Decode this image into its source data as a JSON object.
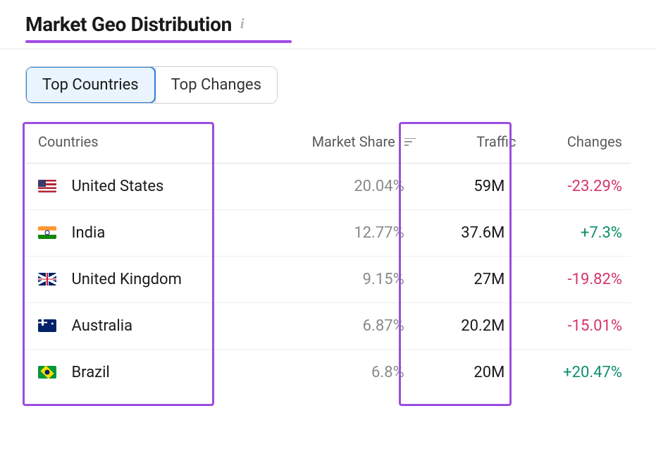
{
  "header": {
    "title": "Market Geo Distribution",
    "underline_color": "#a14ee8"
  },
  "tabs": [
    {
      "label": "Top Countries",
      "active": true
    },
    {
      "label": "Top Changes",
      "active": false
    }
  ],
  "table": {
    "columns": {
      "countries": "Countries",
      "market_share": "Market Share",
      "traffic": "Traffic",
      "changes": "Changes"
    },
    "sorted_by": "market_share",
    "rows": [
      {
        "flag": "us",
        "country": "United States",
        "market_share": "20.04%",
        "traffic": "59M",
        "changes": "-23.29%",
        "changes_sign": "neg"
      },
      {
        "flag": "in",
        "country": "India",
        "market_share": "12.77%",
        "traffic": "37.6M",
        "changes": "+7.3%",
        "changes_sign": "pos"
      },
      {
        "flag": "gb",
        "country": "United Kingdom",
        "market_share": "9.15%",
        "traffic": "27M",
        "changes": "-19.82%",
        "changes_sign": "neg"
      },
      {
        "flag": "au",
        "country": "Australia",
        "market_share": "6.87%",
        "traffic": "20.2M",
        "changes": "-15.01%",
        "changes_sign": "neg"
      },
      {
        "flag": "br",
        "country": "Brazil",
        "market_share": "6.8%",
        "traffic": "20M",
        "changes": "+20.47%",
        "changes_sign": "pos"
      }
    ]
  },
  "colors": {
    "highlight_border": "#9b4de0",
    "positive": "#0d8f6b",
    "negative": "#d6336c",
    "muted": "#8a8a8a",
    "text": "#1a1a1a",
    "tab_active_bg": "#e9f4ff",
    "tab_active_border": "#2e7cd6"
  }
}
